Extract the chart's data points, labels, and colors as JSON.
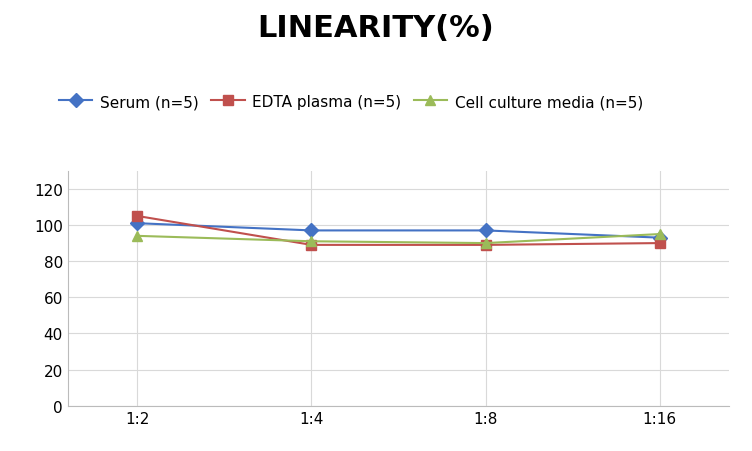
{
  "title": "LINEARITY(%)",
  "x_labels": [
    "1:2",
    "1:4",
    "1:8",
    "1:16"
  ],
  "series": [
    {
      "label": "Serum (n=5)",
      "values": [
        101,
        97,
        97,
        93
      ],
      "color": "#4472C4",
      "marker": "D",
      "linewidth": 1.5
    },
    {
      "label": "EDTA plasma (n=5)",
      "values": [
        105,
        89,
        89,
        90
      ],
      "color": "#C0504D",
      "marker": "s",
      "linewidth": 1.5
    },
    {
      "label": "Cell culture media (n=5)",
      "values": [
        94,
        91,
        90,
        95
      ],
      "color": "#9BBB59",
      "marker": "^",
      "linewidth": 1.5
    }
  ],
  "ylim": [
    0,
    130
  ],
  "yticks": [
    0,
    20,
    40,
    60,
    80,
    100,
    120
  ],
  "title_fontsize": 22,
  "legend_fontsize": 11,
  "tick_fontsize": 11,
  "background_color": "#ffffff",
  "grid_color": "#d9d9d9"
}
